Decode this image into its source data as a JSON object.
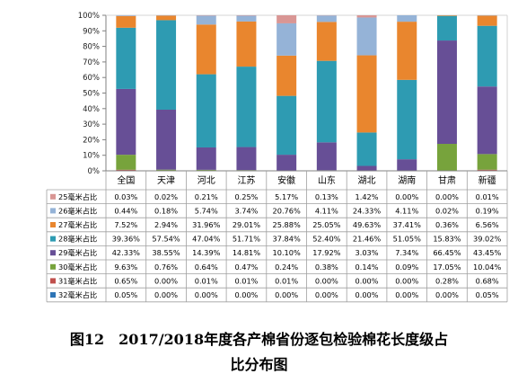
{
  "chart_data": {
    "type": "bar",
    "stacked": true,
    "y_axis_max_percent": 100,
    "y_ticks": [
      "0%",
      "10%",
      "20%",
      "30%",
      "40%",
      "50%",
      "60%",
      "70%",
      "80%",
      "90%",
      "100%"
    ],
    "categories": [
      "全国",
      "天津",
      "河北",
      "江苏",
      "安徽",
      "山东",
      "湖北",
      "湖南",
      "甘肃",
      "新疆"
    ],
    "series": [
      {
        "name": "32毫米占比",
        "color": "#2e75b6",
        "values": [
          0.05,
          0.0,
          0.0,
          0.0,
          0.0,
          0.0,
          0.0,
          0.0,
          0.0,
          0.05
        ],
        "labels": [
          "0.05%",
          "0.00%",
          "0.00%",
          "0.00%",
          "0.00%",
          "0.00%",
          "0.00%",
          "0.00%",
          "0.00%",
          "0.05%"
        ]
      },
      {
        "name": "31毫米占比",
        "color": "#c0504d",
        "values": [
          0.65,
          0.0,
          0.01,
          0.01,
          0.01,
          0.0,
          0.0,
          0.0,
          0.28,
          0.68
        ],
        "labels": [
          "0.65%",
          "0.00%",
          "0.01%",
          "0.01%",
          "0.01%",
          "0.00%",
          "0.00%",
          "0.00%",
          "0.28%",
          "0.68%"
        ]
      },
      {
        "name": "30毫米占比",
        "color": "#77a33c",
        "values": [
          9.63,
          0.76,
          0.64,
          0.47,
          0.24,
          0.38,
          0.14,
          0.09,
          17.05,
          10.04
        ],
        "labels": [
          "9.63%",
          "0.76%",
          "0.64%",
          "0.47%",
          "0.24%",
          "0.38%",
          "0.14%",
          "0.09%",
          "17.05%",
          "10.04%"
        ]
      },
      {
        "name": "29毫米占比",
        "color": "#674f96",
        "values": [
          42.33,
          38.55,
          14.39,
          14.81,
          10.1,
          17.92,
          3.03,
          7.34,
          66.45,
          43.45
        ],
        "labels": [
          "42.33%",
          "38.55%",
          "14.39%",
          "14.81%",
          "10.10%",
          "17.92%",
          "3.03%",
          "7.34%",
          "66.45%",
          "43.45%"
        ]
      },
      {
        "name": "28毫米占比",
        "color": "#2e9bb2",
        "values": [
          39.36,
          57.54,
          47.04,
          51.71,
          37.84,
          52.4,
          21.46,
          51.05,
          15.83,
          39.02
        ],
        "labels": [
          "39.36%",
          "57.54%",
          "47.04%",
          "51.71%",
          "37.84%",
          "52.40%",
          "21.46%",
          "51.05%",
          "15.83%",
          "39.02%"
        ]
      },
      {
        "name": "27毫米占比",
        "color": "#e9862e",
        "values": [
          7.52,
          2.94,
          31.96,
          29.01,
          25.88,
          25.05,
          49.63,
          37.41,
          0.36,
          6.56
        ],
        "labels": [
          "7.52%",
          "2.94%",
          "31.96%",
          "29.01%",
          "25.88%",
          "25.05%",
          "49.63%",
          "37.41%",
          "0.36%",
          "6.56%"
        ]
      },
      {
        "name": "26毫米占比",
        "color": "#95b3d7",
        "values": [
          0.44,
          0.18,
          5.74,
          3.74,
          20.76,
          4.11,
          24.33,
          4.11,
          0.02,
          0.19
        ],
        "labels": [
          "0.44%",
          "0.18%",
          "5.74%",
          "3.74%",
          "20.76%",
          "4.11%",
          "24.33%",
          "4.11%",
          "0.02%",
          "0.19%"
        ]
      },
      {
        "name": "25毫米占比",
        "color": "#d99694",
        "values": [
          0.03,
          0.02,
          0.21,
          0.25,
          5.17,
          0.13,
          1.42,
          0.0,
          0.0,
          0.01
        ],
        "labels": [
          "0.03%",
          "0.02%",
          "0.21%",
          "0.25%",
          "5.17%",
          "0.13%",
          "1.42%",
          "0.00%",
          "0.00%",
          "0.01%"
        ]
      }
    ],
    "table_row_order": [
      "25毫米占比",
      "26毫米占比",
      "27毫米占比",
      "28毫米占比",
      "29毫米占比",
      "30毫米占比",
      "31毫米占比",
      "32毫米占比"
    ],
    "grid": false,
    "legend": "data-table"
  },
  "caption": {
    "line1": "图12　2017/2018年度各产棉省份逐包检验棉花长度级占",
    "line2": "比分布图"
  }
}
